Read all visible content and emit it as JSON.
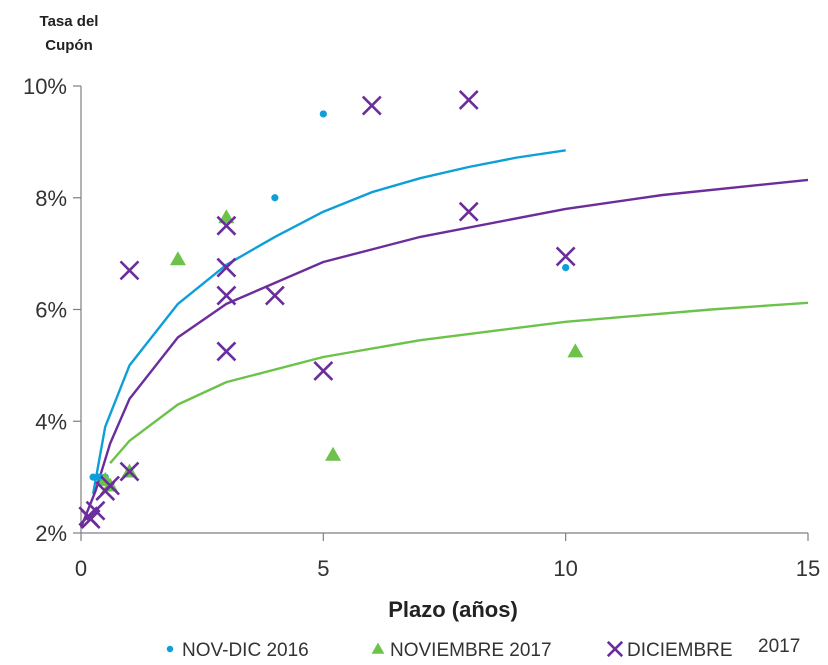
{
  "chart_data": {
    "type": "scatter",
    "ylabel_line1": "Tasa del",
    "ylabel_line2": "Cupón",
    "xlabel": "Plazo (años)",
    "xlim": [
      0,
      15
    ],
    "ylim": [
      2,
      10
    ],
    "x_ticks": [
      0,
      5,
      10,
      15
    ],
    "y_ticks": [
      2,
      4,
      6,
      8,
      10
    ],
    "y_tick_labels": [
      "2%",
      "4%",
      "6%",
      "8%",
      "10%"
    ],
    "grid": false,
    "legend_position": "bottom",
    "series": [
      {
        "name": "NOV-DIC 2016",
        "marker": "dot",
        "color": "#0e9fd8",
        "points": [
          [
            0.25,
            3.0
          ],
          [
            0.35,
            3.0
          ],
          [
            0.4,
            3.0
          ],
          [
            0.5,
            3.0
          ],
          [
            4,
            8.0
          ],
          [
            5,
            9.5
          ],
          [
            10,
            6.75
          ]
        ],
        "trend": [
          [
            0.25,
            2.7
          ],
          [
            0.5,
            3.9
          ],
          [
            1,
            5.0
          ],
          [
            2,
            6.1
          ],
          [
            3,
            6.8
          ],
          [
            4,
            7.3
          ],
          [
            5,
            7.75
          ],
          [
            6,
            8.1
          ],
          [
            7,
            8.35
          ],
          [
            8,
            8.55
          ],
          [
            9,
            8.72
          ],
          [
            10,
            8.85
          ]
        ]
      },
      {
        "name": "NOVIEMBRE 2017",
        "marker": "triangle",
        "color": "#6cc24a",
        "points": [
          [
            0.5,
            2.95
          ],
          [
            0.6,
            2.85
          ],
          [
            1,
            3.1
          ],
          [
            2,
            6.9
          ],
          [
            3,
            7.65
          ],
          [
            5.2,
            3.4
          ],
          [
            10.2,
            5.25
          ]
        ],
        "trend": [
          [
            0.6,
            3.25
          ],
          [
            1,
            3.65
          ],
          [
            2,
            4.3
          ],
          [
            3,
            4.7
          ],
          [
            5,
            5.15
          ],
          [
            7,
            5.45
          ],
          [
            10,
            5.78
          ],
          [
            13,
            6.0
          ],
          [
            15,
            6.12
          ]
        ]
      },
      {
        "name": "DICIEMBRE",
        "marker": "x",
        "color": "#6b2d9b",
        "points": [
          [
            0.15,
            2.3
          ],
          [
            0.2,
            2.25
          ],
          [
            0.3,
            2.4
          ],
          [
            0.5,
            2.75
          ],
          [
            0.6,
            2.85
          ],
          [
            1,
            3.1
          ],
          [
            1,
            6.7
          ],
          [
            3,
            5.25
          ],
          [
            3,
            6.25
          ],
          [
            3,
            6.75
          ],
          [
            3,
            7.5
          ],
          [
            4,
            6.25
          ],
          [
            5,
            4.9
          ],
          [
            6,
            9.65
          ],
          [
            8,
            7.75
          ],
          [
            8,
            9.75
          ],
          [
            10,
            6.95
          ]
        ],
        "trend": [
          [
            0.0,
            2.1
          ],
          [
            0.3,
            2.75
          ],
          [
            0.6,
            3.6
          ],
          [
            1,
            4.4
          ],
          [
            2,
            5.5
          ],
          [
            3,
            6.1
          ],
          [
            5,
            6.85
          ],
          [
            7,
            7.3
          ],
          [
            10,
            7.8
          ],
          [
            12,
            8.05
          ],
          [
            15,
            8.32
          ]
        ]
      }
    ],
    "legend_suffix": "2017"
  }
}
